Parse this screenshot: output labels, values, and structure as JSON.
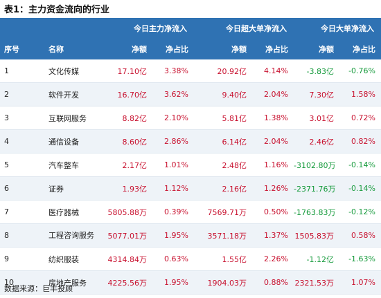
{
  "title": "表1：主力资金流向的行业",
  "header": {
    "idx": "序号",
    "name": "名称",
    "group1": "今日主力净流入",
    "group2": "今日超大单净流入",
    "group3": "今日大单净流入",
    "net": "净额",
    "ratio": "净占比"
  },
  "rows": [
    {
      "idx": "1",
      "name": "文化传媒",
      "m_net": "17.10亿",
      "m_ratio": "3.38%",
      "s_net": "20.92亿",
      "s_ratio": "4.14%",
      "b_net": "-3.83亿",
      "b_ratio": "-0.76%"
    },
    {
      "idx": "2",
      "name": "软件开发",
      "m_net": "16.70亿",
      "m_ratio": "3.62%",
      "s_net": "9.40亿",
      "s_ratio": "2.04%",
      "b_net": "7.30亿",
      "b_ratio": "1.58%"
    },
    {
      "idx": "3",
      "name": "互联网服务",
      "m_net": "8.82亿",
      "m_ratio": "2.10%",
      "s_net": "5.81亿",
      "s_ratio": "1.38%",
      "b_net": "3.01亿",
      "b_ratio": "0.72%"
    },
    {
      "idx": "4",
      "name": "通信设备",
      "m_net": "8.60亿",
      "m_ratio": "2.86%",
      "s_net": "6.14亿",
      "s_ratio": "2.04%",
      "b_net": "2.46亿",
      "b_ratio": "0.82%"
    },
    {
      "idx": "5",
      "name": "汽车整车",
      "m_net": "2.17亿",
      "m_ratio": "1.01%",
      "s_net": "2.48亿",
      "s_ratio": "1.16%",
      "b_net": "-3102.80万",
      "b_ratio": "-0.14%"
    },
    {
      "idx": "6",
      "name": "证券",
      "m_net": "1.93亿",
      "m_ratio": "1.12%",
      "s_net": "2.16亿",
      "s_ratio": "1.26%",
      "b_net": "-2371.76万",
      "b_ratio": "-0.14%"
    },
    {
      "idx": "7",
      "name": "医疗器械",
      "m_net": "5805.88万",
      "m_ratio": "0.39%",
      "s_net": "7569.71万",
      "s_ratio": "0.50%",
      "b_net": "-1763.83万",
      "b_ratio": "-0.12%"
    },
    {
      "idx": "8",
      "name": "工程咨询服务",
      "m_net": "5077.01万",
      "m_ratio": "1.95%",
      "s_net": "3571.18万",
      "s_ratio": "1.37%",
      "b_net": "1505.83万",
      "b_ratio": "0.58%"
    },
    {
      "idx": "9",
      "name": "纺织服装",
      "m_net": "4314.84万",
      "m_ratio": "0.63%",
      "s_net": "1.55亿",
      "s_ratio": "2.26%",
      "b_net": "-1.12亿",
      "b_ratio": "-1.63%"
    },
    {
      "idx": "10",
      "name": "房地产服务",
      "m_net": "4225.56万",
      "m_ratio": "1.95%",
      "s_net": "1904.03万",
      "s_ratio": "0.88%",
      "b_net": "2321.53万",
      "b_ratio": "1.07%"
    }
  ],
  "source": "数据来源：巨丰投顾",
  "colors": {
    "header_bg": "#2f72b3",
    "positive": "#c8102e",
    "negative": "#159a3b",
    "stripe": "#eef3f8"
  }
}
